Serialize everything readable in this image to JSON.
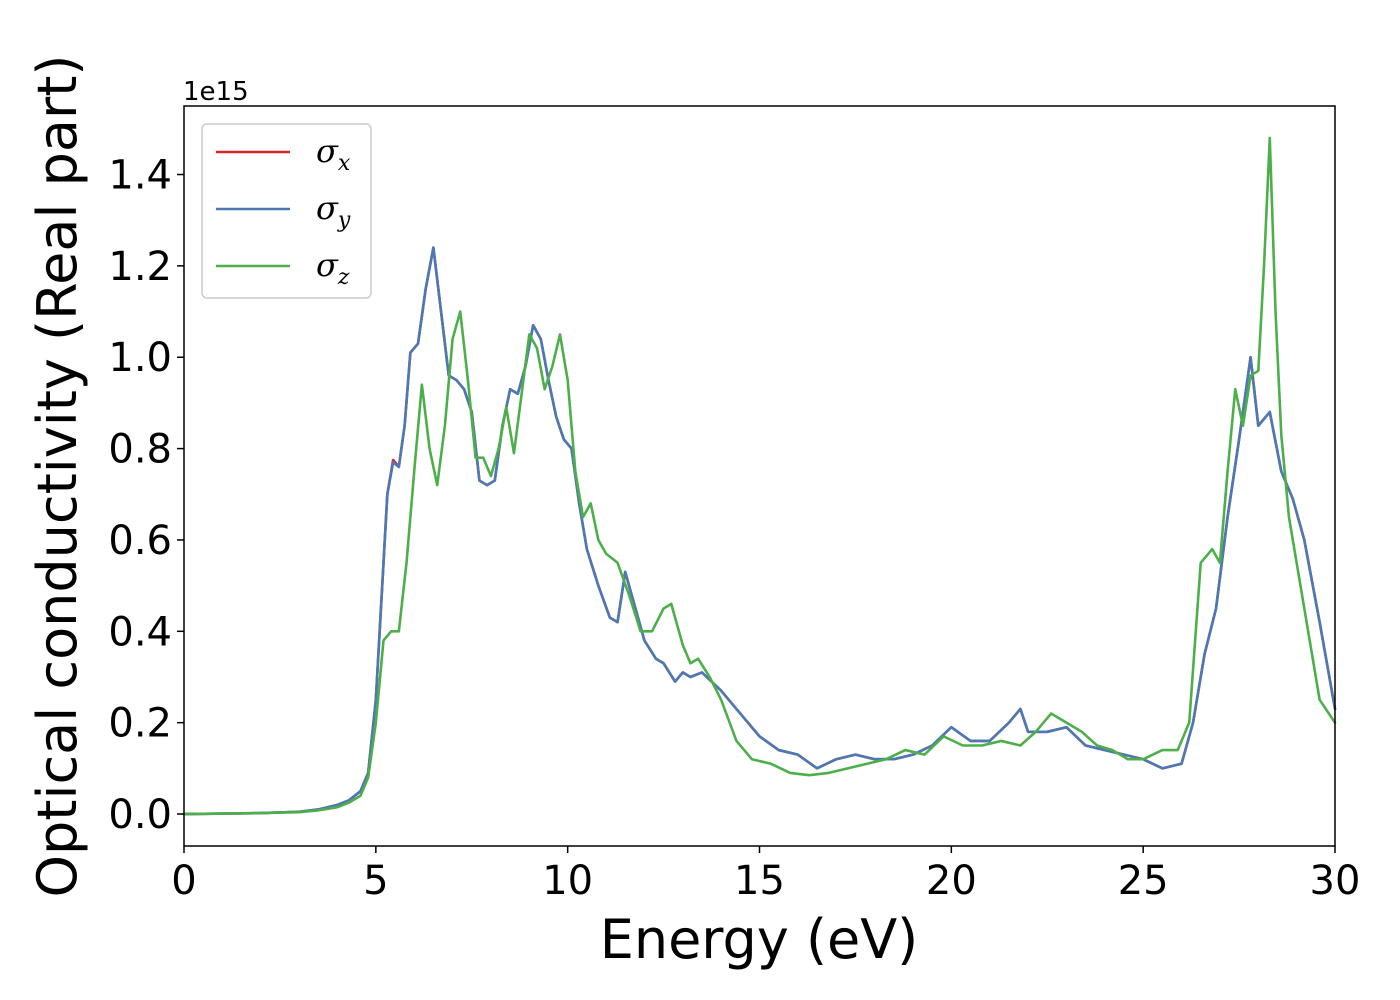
{
  "chart_data": {
    "type": "line",
    "title": "",
    "xlabel": "Energy (eV)",
    "ylabel": "Optical conductivity (Real part)",
    "y_offset_label": "1e15",
    "xlim": [
      0,
      30
    ],
    "ylim": [
      -0.07,
      1.55
    ],
    "xticks": [
      0,
      5,
      10,
      15,
      20,
      25,
      30
    ],
    "xtick_labels": [
      "0",
      "5",
      "10",
      "15",
      "20",
      "25",
      "30"
    ],
    "yticks": [
      0.0,
      0.2,
      0.4,
      0.6,
      0.8,
      1.0,
      1.2,
      1.4
    ],
    "ytick_labels": [
      "0.0",
      "0.2",
      "0.4",
      "0.6",
      "0.8",
      "1.0",
      "1.2",
      "1.4"
    ],
    "grid": false,
    "legend_position": "top-left",
    "series": [
      {
        "name": "σx",
        "legend_main": "σ",
        "legend_sub": "x",
        "color": "#d62728",
        "x": [
          0,
          2,
          3,
          3.5,
          4,
          4.3,
          4.6,
          4.8,
          5.0,
          5.2,
          5.3,
          5.45,
          5.6,
          5.75,
          5.9,
          6.1,
          6.3,
          6.5,
          6.7,
          6.9,
          7.1,
          7.3,
          7.5,
          7.7,
          7.9,
          8.1,
          8.3,
          8.5,
          8.7,
          8.9,
          9.1,
          9.3,
          9.5,
          9.7,
          9.9,
          10.1,
          10.3,
          10.5,
          10.8,
          11.1,
          11.3,
          11.5,
          11.7,
          12.0,
          12.3,
          12.5,
          12.8,
          13.0,
          13.2,
          13.5,
          14.0,
          14.3,
          14.7,
          15.0,
          15.5,
          16.0,
          16.5,
          17.0,
          17.5,
          18.0,
          18.5,
          19.0,
          19.5,
          20.0,
          20.5,
          21.0,
          21.5,
          21.8,
          22.0,
          22.5,
          23.0,
          23.5,
          24.0,
          24.5,
          25.0,
          25.5,
          26.0,
          26.3,
          26.6,
          26.9,
          27.2,
          27.5,
          27.8,
          28.0,
          28.3,
          28.6,
          28.9,
          29.2,
          29.6,
          30.0
        ],
        "y": [
          0,
          0.002,
          0.005,
          0.01,
          0.02,
          0.03,
          0.05,
          0.09,
          0.25,
          0.55,
          0.7,
          0.775,
          0.76,
          0.85,
          1.01,
          1.03,
          1.15,
          1.24,
          1.1,
          0.96,
          0.95,
          0.93,
          0.88,
          0.73,
          0.72,
          0.73,
          0.85,
          0.93,
          0.92,
          0.98,
          1.07,
          1.04,
          0.95,
          0.87,
          0.82,
          0.8,
          0.68,
          0.58,
          0.5,
          0.43,
          0.42,
          0.53,
          0.47,
          0.38,
          0.34,
          0.33,
          0.29,
          0.31,
          0.3,
          0.31,
          0.27,
          0.24,
          0.2,
          0.17,
          0.14,
          0.13,
          0.1,
          0.12,
          0.13,
          0.12,
          0.12,
          0.13,
          0.15,
          0.19,
          0.16,
          0.16,
          0.2,
          0.23,
          0.18,
          0.18,
          0.19,
          0.15,
          0.14,
          0.13,
          0.12,
          0.1,
          0.11,
          0.2,
          0.35,
          0.45,
          0.65,
          0.82,
          1.0,
          0.85,
          0.88,
          0.75,
          0.69,
          0.6,
          0.42,
          0.23
        ]
      },
      {
        "name": "σy",
        "legend_main": "σ",
        "legend_sub": "y",
        "color": "#4a7ab5",
        "x": [
          0,
          2,
          3,
          3.5,
          4,
          4.3,
          4.6,
          4.8,
          5.0,
          5.2,
          5.3,
          5.45,
          5.6,
          5.75,
          5.9,
          6.1,
          6.3,
          6.5,
          6.7,
          6.9,
          7.1,
          7.3,
          7.5,
          7.7,
          7.9,
          8.1,
          8.3,
          8.5,
          8.7,
          8.9,
          9.1,
          9.3,
          9.5,
          9.7,
          9.9,
          10.1,
          10.3,
          10.5,
          10.8,
          11.1,
          11.3,
          11.5,
          11.7,
          12.0,
          12.3,
          12.5,
          12.8,
          13.0,
          13.2,
          13.5,
          14.0,
          14.3,
          14.7,
          15.0,
          15.5,
          16.0,
          16.5,
          17.0,
          17.5,
          18.0,
          18.5,
          19.0,
          19.5,
          20.0,
          20.5,
          21.0,
          21.5,
          21.8,
          22.0,
          22.5,
          23.0,
          23.5,
          24.0,
          24.5,
          25.0,
          25.5,
          26.0,
          26.3,
          26.6,
          26.9,
          27.2,
          27.5,
          27.8,
          28.0,
          28.3,
          28.6,
          28.9,
          29.2,
          29.6,
          30.0
        ],
        "y": [
          0,
          0.002,
          0.005,
          0.01,
          0.02,
          0.03,
          0.05,
          0.09,
          0.25,
          0.55,
          0.7,
          0.77,
          0.76,
          0.85,
          1.01,
          1.03,
          1.15,
          1.24,
          1.1,
          0.96,
          0.95,
          0.93,
          0.88,
          0.73,
          0.72,
          0.73,
          0.85,
          0.93,
          0.92,
          0.98,
          1.07,
          1.04,
          0.95,
          0.87,
          0.82,
          0.8,
          0.68,
          0.58,
          0.5,
          0.43,
          0.42,
          0.53,
          0.47,
          0.38,
          0.34,
          0.33,
          0.29,
          0.31,
          0.3,
          0.31,
          0.27,
          0.24,
          0.2,
          0.17,
          0.14,
          0.13,
          0.1,
          0.12,
          0.13,
          0.12,
          0.12,
          0.13,
          0.15,
          0.19,
          0.16,
          0.16,
          0.2,
          0.23,
          0.18,
          0.18,
          0.19,
          0.15,
          0.14,
          0.13,
          0.12,
          0.1,
          0.11,
          0.2,
          0.35,
          0.45,
          0.65,
          0.82,
          1.0,
          0.85,
          0.88,
          0.75,
          0.69,
          0.6,
          0.42,
          0.23
        ]
      },
      {
        "name": "σz",
        "legend_main": "σ",
        "legend_sub": "z",
        "color": "#4daf4a",
        "x": [
          0,
          2,
          3,
          3.5,
          4,
          4.3,
          4.6,
          4.8,
          5.0,
          5.2,
          5.4,
          5.6,
          5.8,
          6.0,
          6.2,
          6.4,
          6.6,
          6.8,
          7.0,
          7.2,
          7.4,
          7.6,
          7.8,
          8.0,
          8.2,
          8.4,
          8.6,
          8.8,
          9.0,
          9.2,
          9.4,
          9.6,
          9.8,
          10.0,
          10.2,
          10.4,
          10.6,
          10.8,
          11.0,
          11.3,
          11.6,
          11.9,
          12.2,
          12.5,
          12.7,
          13.0,
          13.2,
          13.4,
          13.7,
          14.0,
          14.4,
          14.8,
          15.3,
          15.8,
          16.3,
          16.8,
          17.3,
          17.8,
          18.3,
          18.8,
          19.3,
          19.8,
          20.3,
          20.8,
          21.3,
          21.8,
          22.2,
          22.6,
          23.0,
          23.4,
          23.8,
          24.2,
          24.6,
          25.0,
          25.5,
          25.9,
          26.2,
          26.5,
          26.8,
          27.0,
          27.2,
          27.4,
          27.6,
          27.8,
          28.0,
          28.15,
          28.3,
          28.45,
          28.6,
          28.8,
          29.0,
          29.3,
          29.6,
          30.0
        ],
        "y": [
          0,
          0.002,
          0.004,
          0.008,
          0.015,
          0.025,
          0.04,
          0.08,
          0.2,
          0.38,
          0.4,
          0.4,
          0.55,
          0.75,
          0.94,
          0.8,
          0.72,
          0.85,
          1.04,
          1.1,
          0.95,
          0.78,
          0.78,
          0.74,
          0.8,
          0.89,
          0.79,
          0.92,
          1.05,
          1.02,
          0.93,
          0.98,
          1.05,
          0.95,
          0.75,
          0.65,
          0.68,
          0.6,
          0.57,
          0.55,
          0.48,
          0.4,
          0.4,
          0.45,
          0.46,
          0.37,
          0.33,
          0.34,
          0.3,
          0.25,
          0.16,
          0.12,
          0.11,
          0.09,
          0.085,
          0.09,
          0.1,
          0.11,
          0.12,
          0.14,
          0.13,
          0.17,
          0.15,
          0.15,
          0.16,
          0.15,
          0.18,
          0.22,
          0.2,
          0.18,
          0.15,
          0.14,
          0.12,
          0.12,
          0.14,
          0.14,
          0.2,
          0.55,
          0.58,
          0.55,
          0.75,
          0.93,
          0.85,
          0.96,
          0.97,
          1.2,
          1.48,
          1.1,
          0.83,
          0.65,
          0.55,
          0.4,
          0.25,
          0.2
        ]
      }
    ]
  }
}
